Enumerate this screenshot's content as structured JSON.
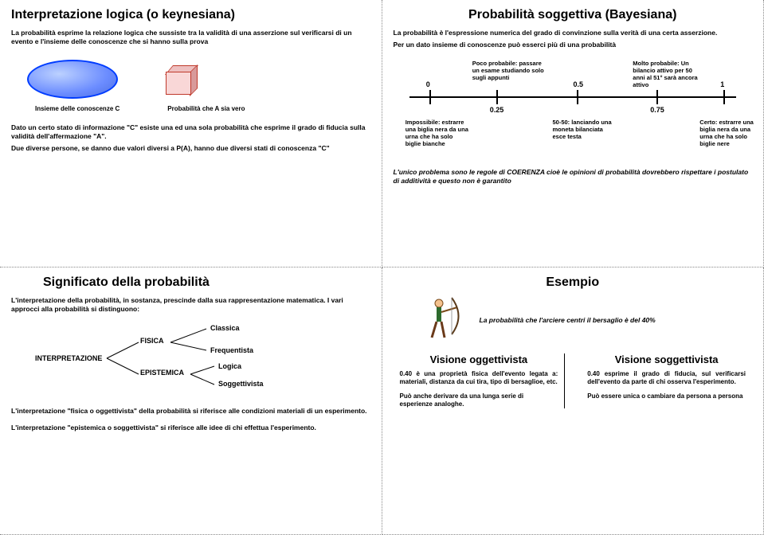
{
  "panel1": {
    "title": "Interpretazione logica (o keynesiana)",
    "intro": "La probabilità esprime la relazione logica che sussiste tra la validità di una asserzione sul verificarsi di un evento e l'insieme delle conoscenze che si hanno sulla prova",
    "label_left": "Insieme delle conoscenze C",
    "label_right": "Probabilità che A sia vero",
    "p2a": "Dato un certo stato di informazione \"C\" esiste una ed una sola probabilità che esprime il grado di fiducia sulla validità dell'affermazione \"A\".",
    "p2b": "Due diverse persone, se danno due valori diversi a P(A), hanno due diversi stati di conoscenza \"C\""
  },
  "panel2": {
    "title": "Probabilità soggettiva (Bayesiana)",
    "intro": "La probabilità è l'espressione numerica del grado di convinzione sulla verità di una certa asserzione.",
    "sub": "Per un dato insieme di conoscenze  può esserci  più di una probabilità",
    "ticks_top": [
      {
        "pos": 6,
        "num": "0",
        "label": ""
      },
      {
        "pos": 26,
        "num": "",
        "label": "Poco probabile: passare un esame studiando solo sugli appunti"
      },
      {
        "pos": 50,
        "num": "0.5",
        "label": ""
      },
      {
        "pos": 74,
        "num": "",
        "label": "Molto probabile: Un bilancio attivo per 50 anni al 51° sarà ancora attivo"
      },
      {
        "pos": 94,
        "num": "1",
        "label": ""
      }
    ],
    "ticks_bot": [
      {
        "pos": 6,
        "num": "",
        "label": "Impossibile: estrarre una biglia nera da una urna che ha solo biglie bianche"
      },
      {
        "pos": 26,
        "num": "0.25",
        "label": ""
      },
      {
        "pos": 50,
        "num": "",
        "label": "50-50: lanciando una moneta bilanciata esce testa"
      },
      {
        "pos": 74,
        "num": "0.75",
        "label": ""
      },
      {
        "pos": 94,
        "num": "",
        "label": "Certo: estrarre una biglia nera da una urna che ha solo biglie nere"
      }
    ],
    "footer": "L'unico problema sono le regole di COERENZA cioè le opinioni di probabilità dovrebbero rispettare i postulato di additività e questo non è garantito"
  },
  "panel3": {
    "title": "Significato della probabilità",
    "intro": "L'interpretazione della probabilità, in sostanza, prescinde dalla sua rappresentazione matematica. I vari approcci alla probabilità si distinguono:",
    "root": "INTERPRETAZIONE",
    "b1": "FISICA",
    "b2": "EPISTEMICA",
    "l1": "Classica",
    "l2": "Frequentista",
    "l3": "Logica",
    "l4": "Soggettivista",
    "p_fisica": "L'interpretazione \"fisica o oggettivista\" della probabilità si riferisce alle condizioni materiali di un esperimento.",
    "p_epist": "L'interpretazione \"epistemica o soggettivista\" si riferisce alle idee di chi effettua l'esperimento."
  },
  "panel4": {
    "title": "Esempio",
    "lead": "La probabilità che l'arciere centri il bersaglio è del 40%",
    "vL_title": "Visione oggettivista",
    "vR_title": "Visione soggettivista",
    "vL_p1": "0.40 è una proprietà fisica dell'evento legata a: materiali, distanza da cui tira, tipo di bersaglioe, etc.",
    "vL_p2": "Può anche derivare da una lunga serie di esperienze analoghe.",
    "vR_p1": "0.40 esprime il grado di fiducia, sul verificarsi dell'evento da parte di chi osserva l'esperimento.",
    "vR_p2": "Può essere unica o cambiare da persona a persona"
  }
}
